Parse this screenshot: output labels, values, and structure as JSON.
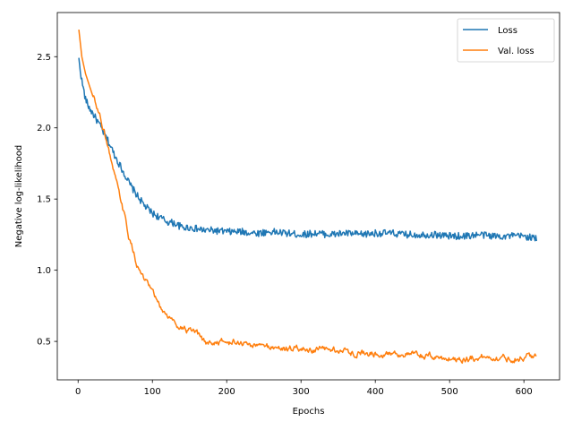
{
  "chart_data": {
    "type": "line",
    "title": "",
    "xlabel": "Epochs",
    "ylabel": "Negative log-likelihood",
    "xlim": [
      -28,
      648
    ],
    "ylim": [
      0.23,
      2.81
    ],
    "xticks": [
      0,
      100,
      200,
      300,
      400,
      500,
      600
    ],
    "yticks": [
      0.5,
      1.0,
      1.5,
      2.0,
      2.5
    ],
    "xtick_labels": [
      "0",
      "100",
      "200",
      "300",
      "400",
      "500",
      "600"
    ],
    "ytick_labels": [
      "0.5",
      "1.0",
      "1.5",
      "2.0",
      "2.5"
    ],
    "grid": false,
    "legend_position": "top-right",
    "series": [
      {
        "name": "Loss",
        "color": "#1f77b4",
        "points": [
          [
            1,
            2.48
          ],
          [
            5,
            2.33
          ],
          [
            10,
            2.2
          ],
          [
            15,
            2.14
          ],
          [
            20,
            2.1
          ],
          [
            30,
            2.01
          ],
          [
            40,
            1.91
          ],
          [
            50,
            1.8
          ],
          [
            60,
            1.7
          ],
          [
            70,
            1.6
          ],
          [
            80,
            1.52
          ],
          [
            90,
            1.45
          ],
          [
            100,
            1.4
          ],
          [
            110,
            1.37
          ],
          [
            120,
            1.34
          ],
          [
            130,
            1.33
          ],
          [
            140,
            1.3
          ],
          [
            150,
            1.3
          ],
          [
            160,
            1.29
          ],
          [
            170,
            1.28
          ],
          [
            180,
            1.28
          ],
          [
            200,
            1.27
          ],
          [
            220,
            1.27
          ],
          [
            240,
            1.26
          ],
          [
            260,
            1.27
          ],
          [
            280,
            1.26
          ],
          [
            300,
            1.25
          ],
          [
            320,
            1.26
          ],
          [
            340,
            1.25
          ],
          [
            360,
            1.26
          ],
          [
            380,
            1.25
          ],
          [
            400,
            1.26
          ],
          [
            420,
            1.26
          ],
          [
            440,
            1.25
          ],
          [
            460,
            1.25
          ],
          [
            480,
            1.25
          ],
          [
            500,
            1.24
          ],
          [
            520,
            1.24
          ],
          [
            540,
            1.25
          ],
          [
            560,
            1.24
          ],
          [
            580,
            1.24
          ],
          [
            600,
            1.24
          ],
          [
            610,
            1.23
          ],
          [
            617,
            1.22
          ]
        ],
        "noise": 0.025
      },
      {
        "name": "Val. loss",
        "color": "#ff7f0e",
        "points": [
          [
            1,
            2.69
          ],
          [
            5,
            2.5
          ],
          [
            10,
            2.38
          ],
          [
            20,
            2.22
          ],
          [
            30,
            2.08
          ],
          [
            40,
            1.88
          ],
          [
            50,
            1.64
          ],
          [
            60,
            1.43
          ],
          [
            70,
            1.2
          ],
          [
            80,
            1.03
          ],
          [
            90,
            0.92
          ],
          [
            100,
            0.84
          ],
          [
            110,
            0.74
          ],
          [
            120,
            0.68
          ],
          [
            130,
            0.63
          ],
          [
            140,
            0.6
          ],
          [
            150,
            0.57
          ],
          [
            160,
            0.55
          ],
          [
            170,
            0.49
          ],
          [
            180,
            0.49
          ],
          [
            190,
            0.5
          ],
          [
            200,
            0.49
          ],
          [
            220,
            0.49
          ],
          [
            240,
            0.47
          ],
          [
            260,
            0.46
          ],
          [
            280,
            0.45
          ],
          [
            300,
            0.45
          ],
          [
            320,
            0.44
          ],
          [
            340,
            0.44
          ],
          [
            360,
            0.43
          ],
          [
            380,
            0.42
          ],
          [
            400,
            0.42
          ],
          [
            420,
            0.42
          ],
          [
            440,
            0.41
          ],
          [
            460,
            0.4
          ],
          [
            480,
            0.39
          ],
          [
            500,
            0.38
          ],
          [
            520,
            0.38
          ],
          [
            540,
            0.39
          ],
          [
            560,
            0.39
          ],
          [
            580,
            0.38
          ],
          [
            600,
            0.39
          ],
          [
            610,
            0.4
          ],
          [
            617,
            0.38
          ]
        ],
        "noise": 0.018
      }
    ]
  }
}
